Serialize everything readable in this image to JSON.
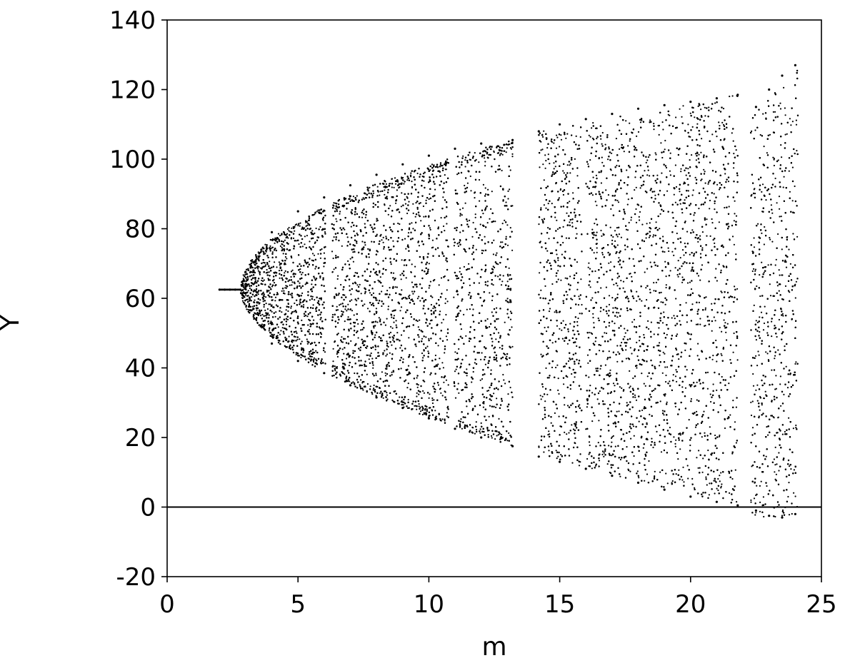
{
  "chart_data": {
    "type": "scatter",
    "title": "",
    "xlabel": "m",
    "ylabel": "Y",
    "xlim": [
      0,
      25
    ],
    "ylim": [
      -20,
      140
    ],
    "x_ticks": [
      0,
      5,
      10,
      15,
      20,
      25
    ],
    "y_ticks": [
      -20,
      0,
      20,
      40,
      60,
      80,
      100,
      120,
      140
    ],
    "x_tick_labels": [
      "0",
      "5",
      "10",
      "15",
      "20",
      "25"
    ],
    "y_tick_labels": [
      "-20",
      "0",
      "20",
      "40",
      "60",
      "80",
      "100",
      "120",
      "140"
    ],
    "zero_line": {
      "y": 0,
      "x_range": [
        0,
        25
      ]
    },
    "grid": false,
    "legend": "none",
    "colors": {
      "points": "#000000",
      "axes": "#000000"
    },
    "series": [
      {
        "kind": "bifurcation-cloud",
        "points": [
          [
            2.0,
            62.5
          ],
          [
            2.2,
            62.5
          ],
          [
            2.4,
            62.5
          ],
          [
            2.6,
            62.5
          ],
          [
            2.8,
            62.5
          ],
          [
            3.0,
            63.5
          ],
          [
            3.0,
            61.5
          ],
          [
            3.3,
            68.0
          ],
          [
            3.3,
            57.0
          ],
          [
            3.6,
            74.0
          ],
          [
            3.6,
            52.0
          ],
          [
            4.0,
            79.0
          ],
          [
            4.0,
            47.0
          ],
          [
            5.0,
            85.0
          ],
          [
            5.0,
            42.0
          ],
          [
            6.0,
            89.0
          ],
          [
            6.0,
            38.5
          ],
          [
            7.0,
            92.5
          ],
          [
            7.0,
            35.0
          ],
          [
            8.0,
            95.5
          ],
          [
            8.0,
            31.5
          ],
          [
            9.0,
            98.5
          ],
          [
            9.0,
            28.5
          ],
          [
            10.0,
            101.0
          ],
          [
            10.0,
            25.5
          ],
          [
            11.0,
            103.0
          ],
          [
            11.0,
            22.5
          ],
          [
            12.0,
            104.5
          ],
          [
            12.0,
            20.0
          ],
          [
            13.2,
            105.5
          ],
          [
            13.2,
            17.5
          ],
          [
            14.2,
            108.0
          ],
          [
            14.2,
            14.5
          ],
          [
            15.0,
            110.0
          ],
          [
            15.0,
            13.0
          ],
          [
            16.0,
            111.5
          ],
          [
            16.0,
            11.0
          ],
          [
            17.0,
            113.0
          ],
          [
            17.0,
            9.0
          ],
          [
            18.0,
            114.5
          ],
          [
            18.0,
            7.0
          ],
          [
            19.0,
            115.5
          ],
          [
            19.0,
            5.0
          ],
          [
            20.0,
            116.5
          ],
          [
            20.0,
            3.0
          ],
          [
            21.0,
            117.5
          ],
          [
            21.0,
            1.5
          ],
          [
            21.8,
            118.5
          ],
          [
            21.8,
            0.5
          ],
          [
            22.5,
            115.0
          ],
          [
            22.5,
            -1.0
          ],
          [
            23.0,
            120.0
          ],
          [
            23.0,
            -2.5
          ],
          [
            23.5,
            124.0
          ],
          [
            23.5,
            -3.0
          ],
          [
            24.0,
            127.0
          ],
          [
            24.0,
            -2.0
          ]
        ]
      }
    ]
  }
}
